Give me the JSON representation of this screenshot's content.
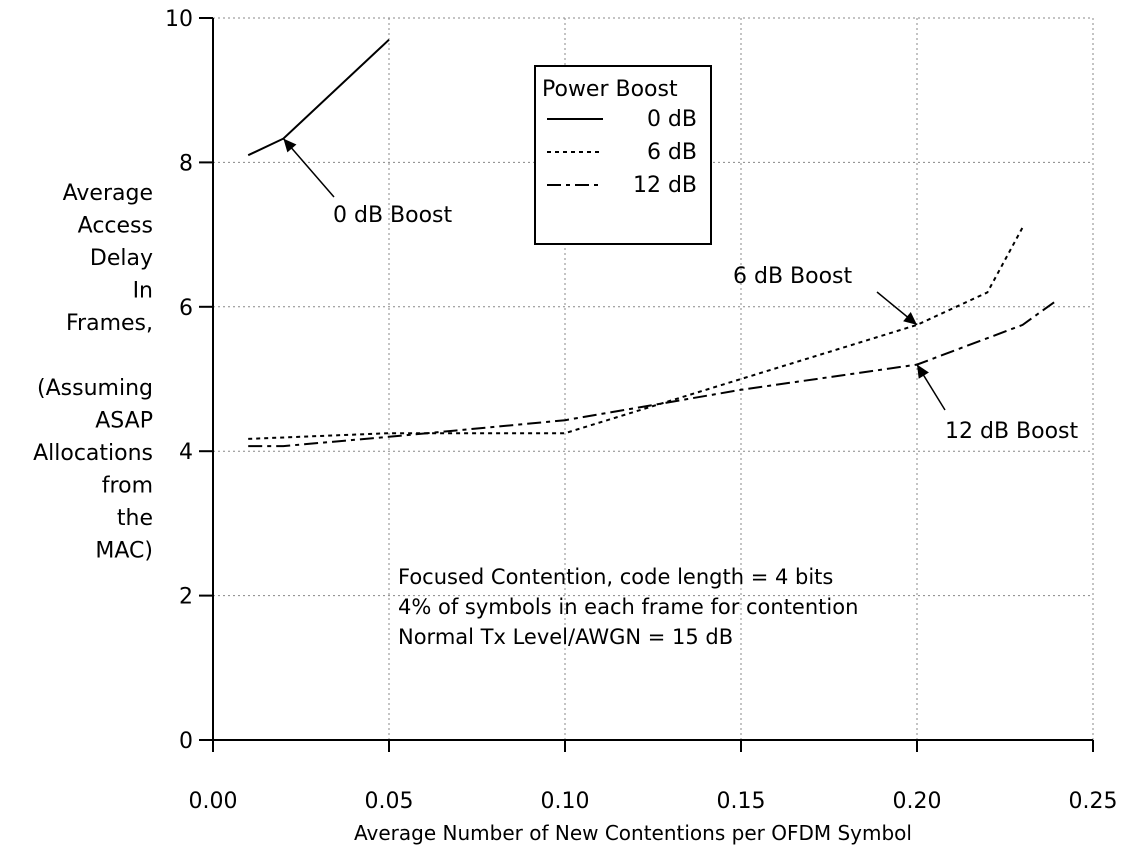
{
  "chart_data": {
    "type": "line",
    "xlabel": "Average Number of New Contentions per OFDM Symbol",
    "ylabel_lines": [
      "Average",
      "Access",
      "Delay",
      "In",
      "Frames,",
      "",
      "(Assuming",
      "ASAP",
      "Allocations",
      "from",
      "the",
      "MAC)"
    ],
    "xlim": [
      0.0,
      0.25
    ],
    "ylim": [
      0,
      10
    ],
    "xticks": [
      "0.00",
      "0.05",
      "0.10",
      "0.15",
      "0.20",
      "0.25"
    ],
    "xtick_values": [
      0.0,
      0.05,
      0.1,
      0.15,
      0.2,
      0.25
    ],
    "yticks": [
      "0",
      "2",
      "4",
      "6",
      "8",
      "10"
    ],
    "ytick_values": [
      0,
      2,
      4,
      6,
      8,
      10
    ],
    "grid": true,
    "legend": {
      "title": "Power Boost",
      "placement": "top-center",
      "entries": [
        "0 dB",
        "6 dB",
        "12 dB"
      ]
    },
    "series": [
      {
        "name": "0 dB",
        "style": "solid",
        "x": [
          0.01,
          0.02,
          0.05
        ],
        "y": [
          8.1,
          8.33,
          9.7
        ]
      },
      {
        "name": "6 dB",
        "style": "dotted",
        "x": [
          0.01,
          0.05,
          0.1,
          0.15,
          0.2,
          0.22,
          0.23
        ],
        "y": [
          4.17,
          4.25,
          4.25,
          5.0,
          5.75,
          6.2,
          7.1
        ]
      },
      {
        "name": "12 dB",
        "style": "dashdot",
        "x": [
          0.01,
          0.02,
          0.05,
          0.1,
          0.15,
          0.2,
          0.23,
          0.24
        ],
        "y": [
          4.07,
          4.07,
          4.2,
          4.43,
          4.85,
          5.2,
          5.75,
          6.1
        ]
      }
    ],
    "annotations": [
      {
        "text": "0 dB Boost",
        "x": 0.02,
        "y": 8.33
      },
      {
        "text": "6 dB Boost",
        "x": 0.2,
        "y": 5.75
      },
      {
        "text": "12 dB Boost",
        "x": 0.2,
        "y": 5.2
      }
    ],
    "note_lines": [
      "Focused Contention, code length = 4 bits",
      "4% of symbols in each frame for contention",
      "Normal Tx Level/AWGN = 15 dB"
    ]
  }
}
